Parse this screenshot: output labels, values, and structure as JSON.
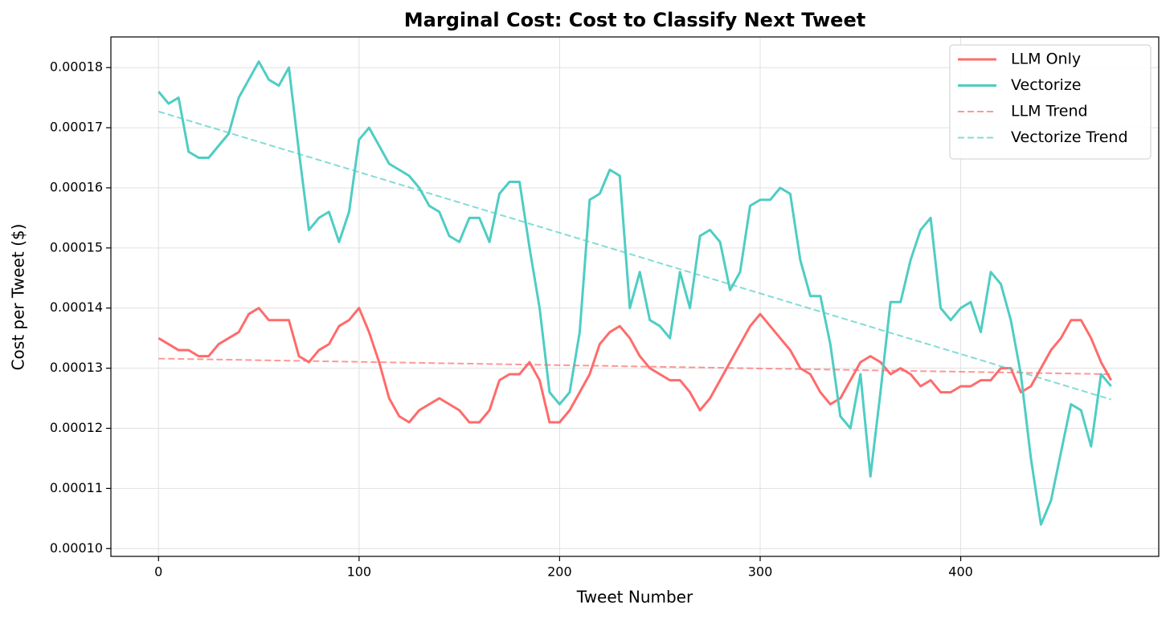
{
  "chart_data": {
    "type": "line",
    "title": "Marginal Cost: Cost to Classify Next Tweet",
    "xlabel": "Tweet Number",
    "ylabel": "Cost per Tweet ($)",
    "x": [
      0,
      5,
      10,
      15,
      20,
      25,
      30,
      35,
      40,
      45,
      50,
      55,
      60,
      65,
      70,
      75,
      80,
      85,
      90,
      95,
      100,
      105,
      110,
      115,
      120,
      125,
      130,
      135,
      140,
      145,
      150,
      155,
      160,
      165,
      170,
      175,
      180,
      185,
      190,
      195,
      200,
      205,
      210,
      215,
      220,
      225,
      230,
      235,
      240,
      245,
      250,
      255,
      260,
      265,
      270,
      275,
      280,
      285,
      290,
      295,
      300,
      305,
      310,
      315,
      320,
      325,
      330,
      335,
      340,
      345,
      350,
      355,
      360,
      365,
      370,
      375,
      380,
      385,
      390,
      395,
      400,
      405,
      410,
      415,
      420,
      425,
      430,
      435,
      440,
      445,
      450,
      455,
      460,
      465,
      470,
      475
    ],
    "series": [
      {
        "name": "LLM Only",
        "color": "#ff6b6b",
        "dashed": false,
        "values": [
          0.000135,
          0.000134,
          0.000133,
          0.000133,
          0.000132,
          0.000132,
          0.000134,
          0.000135,
          0.000136,
          0.000139,
          0.00014,
          0.000138,
          0.000138,
          0.000138,
          0.000132,
          0.000131,
          0.000133,
          0.000134,
          0.000137,
          0.000138,
          0.00014,
          0.000136,
          0.000131,
          0.000125,
          0.000122,
          0.000121,
          0.000123,
          0.000124,
          0.000125,
          0.000124,
          0.000123,
          0.000121,
          0.000121,
          0.000123,
          0.000128,
          0.000129,
          0.000129,
          0.000131,
          0.000128,
          0.000121,
          0.000121,
          0.000123,
          0.000126,
          0.000129,
          0.000134,
          0.000136,
          0.000137,
          0.000135,
          0.000132,
          0.00013,
          0.000129,
          0.000128,
          0.000128,
          0.000126,
          0.000123,
          0.000125,
          0.000128,
          0.000131,
          0.000134,
          0.000137,
          0.000139,
          0.000137,
          0.000135,
          0.000133,
          0.00013,
          0.000129,
          0.000126,
          0.000124,
          0.000125,
          0.000128,
          0.000131,
          0.000132,
          0.000131,
          0.000129,
          0.00013,
          0.000129,
          0.000127,
          0.000128,
          0.000126,
          0.000126,
          0.000127,
          0.000127,
          0.000128,
          0.000128,
          0.00013,
          0.00013,
          0.000126,
          0.000127,
          0.00013,
          0.000133,
          0.000135,
          0.000138,
          0.000138,
          0.000135,
          0.000131,
          0.000128
        ]
      },
      {
        "name": "Vectorize",
        "color": "#4ecdc4",
        "dashed": false,
        "values": [
          0.000176,
          0.000174,
          0.000175,
          0.000166,
          0.000165,
          0.000165,
          0.000167,
          0.000169,
          0.000175,
          0.000178,
          0.000181,
          0.000178,
          0.000177,
          0.00018,
          0.000166,
          0.000153,
          0.000155,
          0.000156,
          0.000151,
          0.000156,
          0.000168,
          0.00017,
          0.000167,
          0.000164,
          0.000163,
          0.000162,
          0.00016,
          0.000157,
          0.000156,
          0.000152,
          0.000151,
          0.000155,
          0.000155,
          0.000151,
          0.000159,
          0.000161,
          0.000161,
          0.00015,
          0.00014,
          0.000126,
          0.000124,
          0.000126,
          0.000136,
          0.000158,
          0.000159,
          0.000163,
          0.000162,
          0.00014,
          0.000146,
          0.000138,
          0.000137,
          0.000135,
          0.000146,
          0.00014,
          0.000152,
          0.000153,
          0.000151,
          0.000143,
          0.000146,
          0.000157,
          0.000158,
          0.000158,
          0.00016,
          0.000159,
          0.000148,
          0.000142,
          0.000142,
          0.000134,
          0.000122,
          0.00012,
          0.000129,
          0.000112,
          0.000126,
          0.000141,
          0.000141,
          0.000148,
          0.000153,
          0.000155,
          0.00014,
          0.000138,
          0.00014,
          0.000141,
          0.000136,
          0.000146,
          0.000144,
          0.000138,
          0.000129,
          0.000115,
          0.000104,
          0.000108,
          0.000116,
          0.000124,
          0.000123,
          0.000117,
          0.000129,
          0.000127
        ]
      },
      {
        "name": "LLM Trend",
        "color": "#ff6b6b",
        "dashed": true,
        "x": [
          0,
          475
        ],
        "values": [
          0.0001316,
          0.000129
        ]
      },
      {
        "name": "Vectorize Trend",
        "color": "#4ecdc4",
        "dashed": true,
        "x": [
          0,
          475
        ],
        "values": [
          0.0001727,
          0.0001248
        ]
      }
    ],
    "xlim": [
      -23.75,
      498.75
    ],
    "xticks": [
      0,
      100,
      200,
      300,
      400
    ],
    "ylim": [
      9.87e-05,
      0.0001851
    ],
    "yticks": [
      {
        "value": 0.0001,
        "label": "0.00010"
      },
      0.00011,
      0.00012,
      0.00013,
      0.00014,
      0.00015,
      0.00016,
      0.00017,
      0.00018
    ],
    "grid": true,
    "legend": "upper right"
  }
}
